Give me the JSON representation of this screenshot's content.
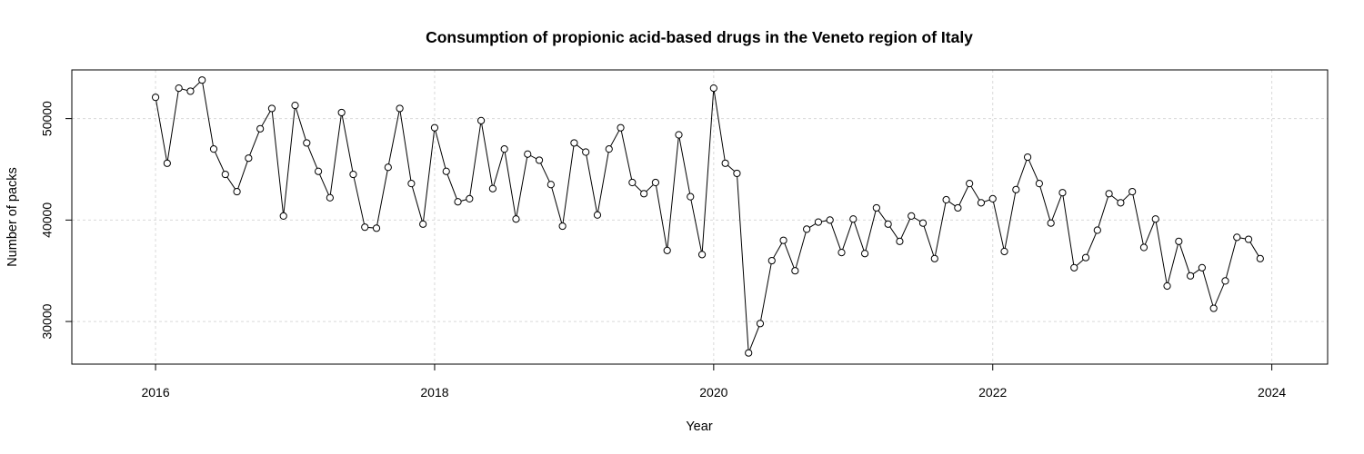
{
  "chart_data": {
    "type": "line",
    "title": "Consumption of propionic acid-based drugs in the Veneto region of Italy",
    "xlabel": "Year",
    "ylabel": "Number of packs",
    "xlim": [
      2015.4,
      2024.4
    ],
    "ylim": [
      25800,
      54800
    ],
    "x_ticks": [
      2016,
      2018,
      2020,
      2022,
      2024
    ],
    "y_ticks": [
      30000,
      40000,
      50000
    ],
    "grid": true,
    "markers": "open-circle",
    "series": [
      {
        "start": "2016-01",
        "frequency": "monthly",
        "color": "#000000",
        "values": [
          52100,
          45600,
          53000,
          52700,
          53800,
          47000,
          44500,
          42800,
          46100,
          49000,
          51000,
          40400,
          51300,
          47600,
          44800,
          42200,
          50600,
          44500,
          39300,
          39200,
          45200,
          51000,
          43600,
          39600,
          49100,
          44800,
          41800,
          42100,
          49800,
          43100,
          47000,
          40100,
          46500,
          45900,
          43500,
          39400,
          47600,
          46700,
          40500,
          47000,
          49100,
          43700,
          42600,
          43700,
          37000,
          48400,
          42300,
          36600,
          53000,
          45600,
          44600,
          26900,
          29800,
          36000,
          38000,
          35000,
          39100,
          39800,
          40000,
          36800,
          40100,
          36700,
          41200,
          39600,
          37900,
          40400,
          39700,
          36200,
          42000,
          41200,
          43600,
          41700,
          42100,
          36900,
          43000,
          46200,
          43600,
          39700,
          42700,
          35300,
          36300,
          39000,
          42600,
          41700,
          42800,
          37300,
          40100,
          33500,
          37900,
          34500,
          35300,
          31300,
          34000,
          38300,
          38100,
          36200
        ]
      }
    ]
  }
}
